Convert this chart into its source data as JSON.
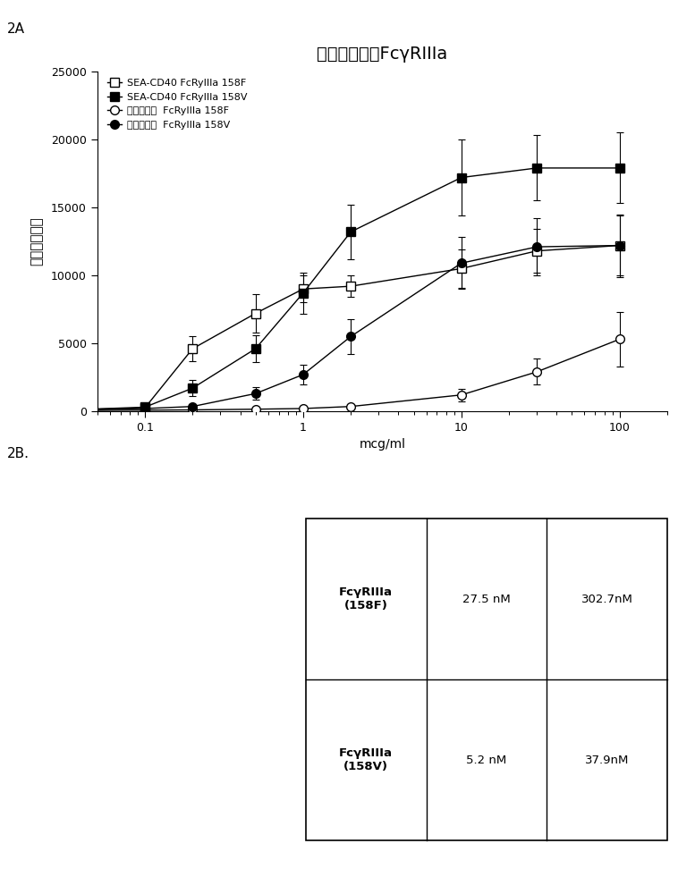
{
  "title": "抗体结合至人FcγRIIIa",
  "xlabel": "mcg/ml",
  "ylabel": "几何平均荧光",
  "panel_a_label": "2A",
  "panel_b_label": "2B.",
  "ylim": [
    0,
    25000
  ],
  "yticks": [
    0,
    5000,
    10000,
    15000,
    20000,
    25000
  ],
  "series": [
    {
      "label": "SEA-CD40 FcRyIIIa 158F",
      "marker": "s",
      "filled": false,
      "x": [
        0.03,
        0.1,
        0.2,
        0.5,
        1.0,
        2.0,
        10.0,
        30.0,
        100.0
      ],
      "y": [
        80,
        250,
        4600,
        7200,
        9000,
        9200,
        10500,
        11800,
        12200
      ],
      "yerr": [
        40,
        120,
        900,
        1400,
        1000,
        800,
        1400,
        1600,
        2200
      ]
    },
    {
      "label": "SEA-CD40 FcRyIIIa 158V",
      "marker": "s",
      "filled": true,
      "x": [
        0.03,
        0.1,
        0.2,
        0.5,
        1.0,
        2.0,
        10.0,
        30.0,
        100.0
      ],
      "y": [
        80,
        300,
        1700,
        4600,
        8700,
        13200,
        17200,
        17900,
        17900
      ],
      "yerr": [
        40,
        150,
        600,
        1000,
        1500,
        2000,
        2800,
        2400,
        2600
      ]
    },
    {
      "label": "达西珠单抗  FcRyIIIa 158F",
      "marker": "o",
      "filled": false,
      "x": [
        0.03,
        0.1,
        0.2,
        0.5,
        1.0,
        2.0,
        10.0,
        30.0,
        100.0
      ],
      "y": [
        50,
        80,
        100,
        150,
        200,
        350,
        1200,
        2900,
        5300
      ],
      "yerr": [
        25,
        35,
        45,
        55,
        70,
        120,
        450,
        950,
        2000
      ]
    },
    {
      "label": "达西珠单抗  FcRyIIIa 158V",
      "marker": "o",
      "filled": true,
      "x": [
        0.03,
        0.1,
        0.2,
        0.5,
        1.0,
        2.0,
        10.0,
        30.0,
        100.0
      ],
      "y": [
        80,
        200,
        350,
        1300,
        2700,
        5500,
        10900,
        12100,
        12200
      ],
      "yerr": [
        40,
        80,
        120,
        450,
        700,
        1300,
        1900,
        2100,
        2300
      ]
    }
  ],
  "table": {
    "row_labels": [
      "FcγRIIIa\n(158F)",
      "FcγRIIIa\n(158V)"
    ],
    "col1": [
      "27.5 nM",
      "5.2 nM"
    ],
    "col2": [
      "302.7nM",
      "37.9nM"
    ]
  },
  "background": "#ffffff"
}
